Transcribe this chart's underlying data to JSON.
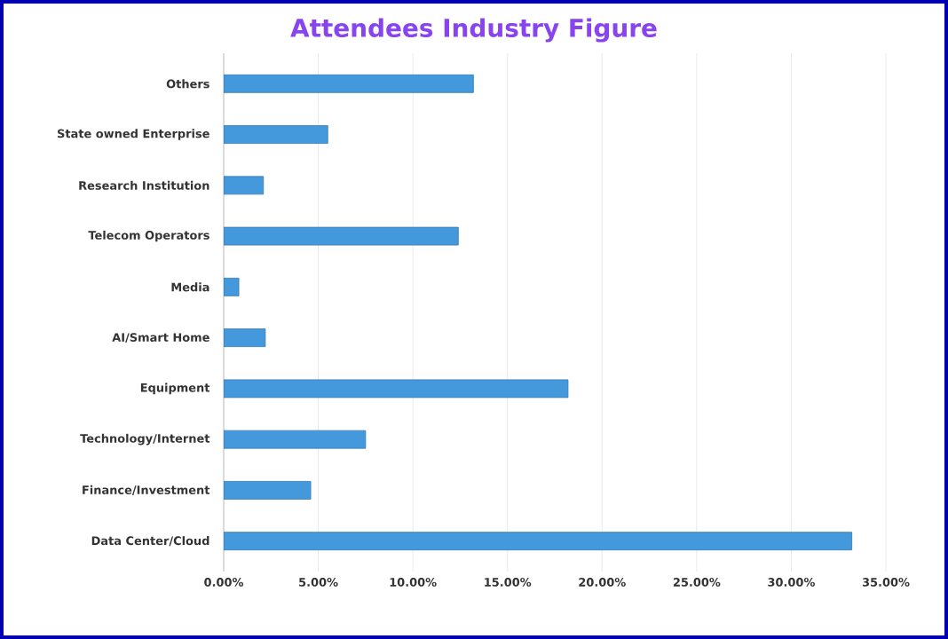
{
  "chart_data": {
    "type": "bar",
    "orientation": "horizontal",
    "title": "Attendees Industry Figure",
    "categories": [
      "Others",
      "State owned Enterprise",
      "Research Institution",
      "Telecom Operators",
      "Media",
      "AI/Smart Home",
      "Equipment",
      "Technology/Internet",
      "Finance/Investment",
      "Data Center/Cloud"
    ],
    "values": [
      13.2,
      5.5,
      2.1,
      12.4,
      0.8,
      2.2,
      18.2,
      7.5,
      4.6,
      33.2
    ],
    "color": "#4499dd",
    "xlim": [
      0,
      35
    ],
    "xticks": [
      {
        "value": 0,
        "label": "0.00%"
      },
      {
        "value": 5,
        "label": "5.00%"
      },
      {
        "value": 10,
        "label": "10.00%"
      },
      {
        "value": 15,
        "label": "15.00%"
      },
      {
        "value": 20,
        "label": "20.00%"
      },
      {
        "value": 25,
        "label": "25.00%"
      },
      {
        "value": 30,
        "label": "30.00%"
      },
      {
        "value": 35,
        "label": "35.00%"
      }
    ],
    "grid": "x"
  }
}
